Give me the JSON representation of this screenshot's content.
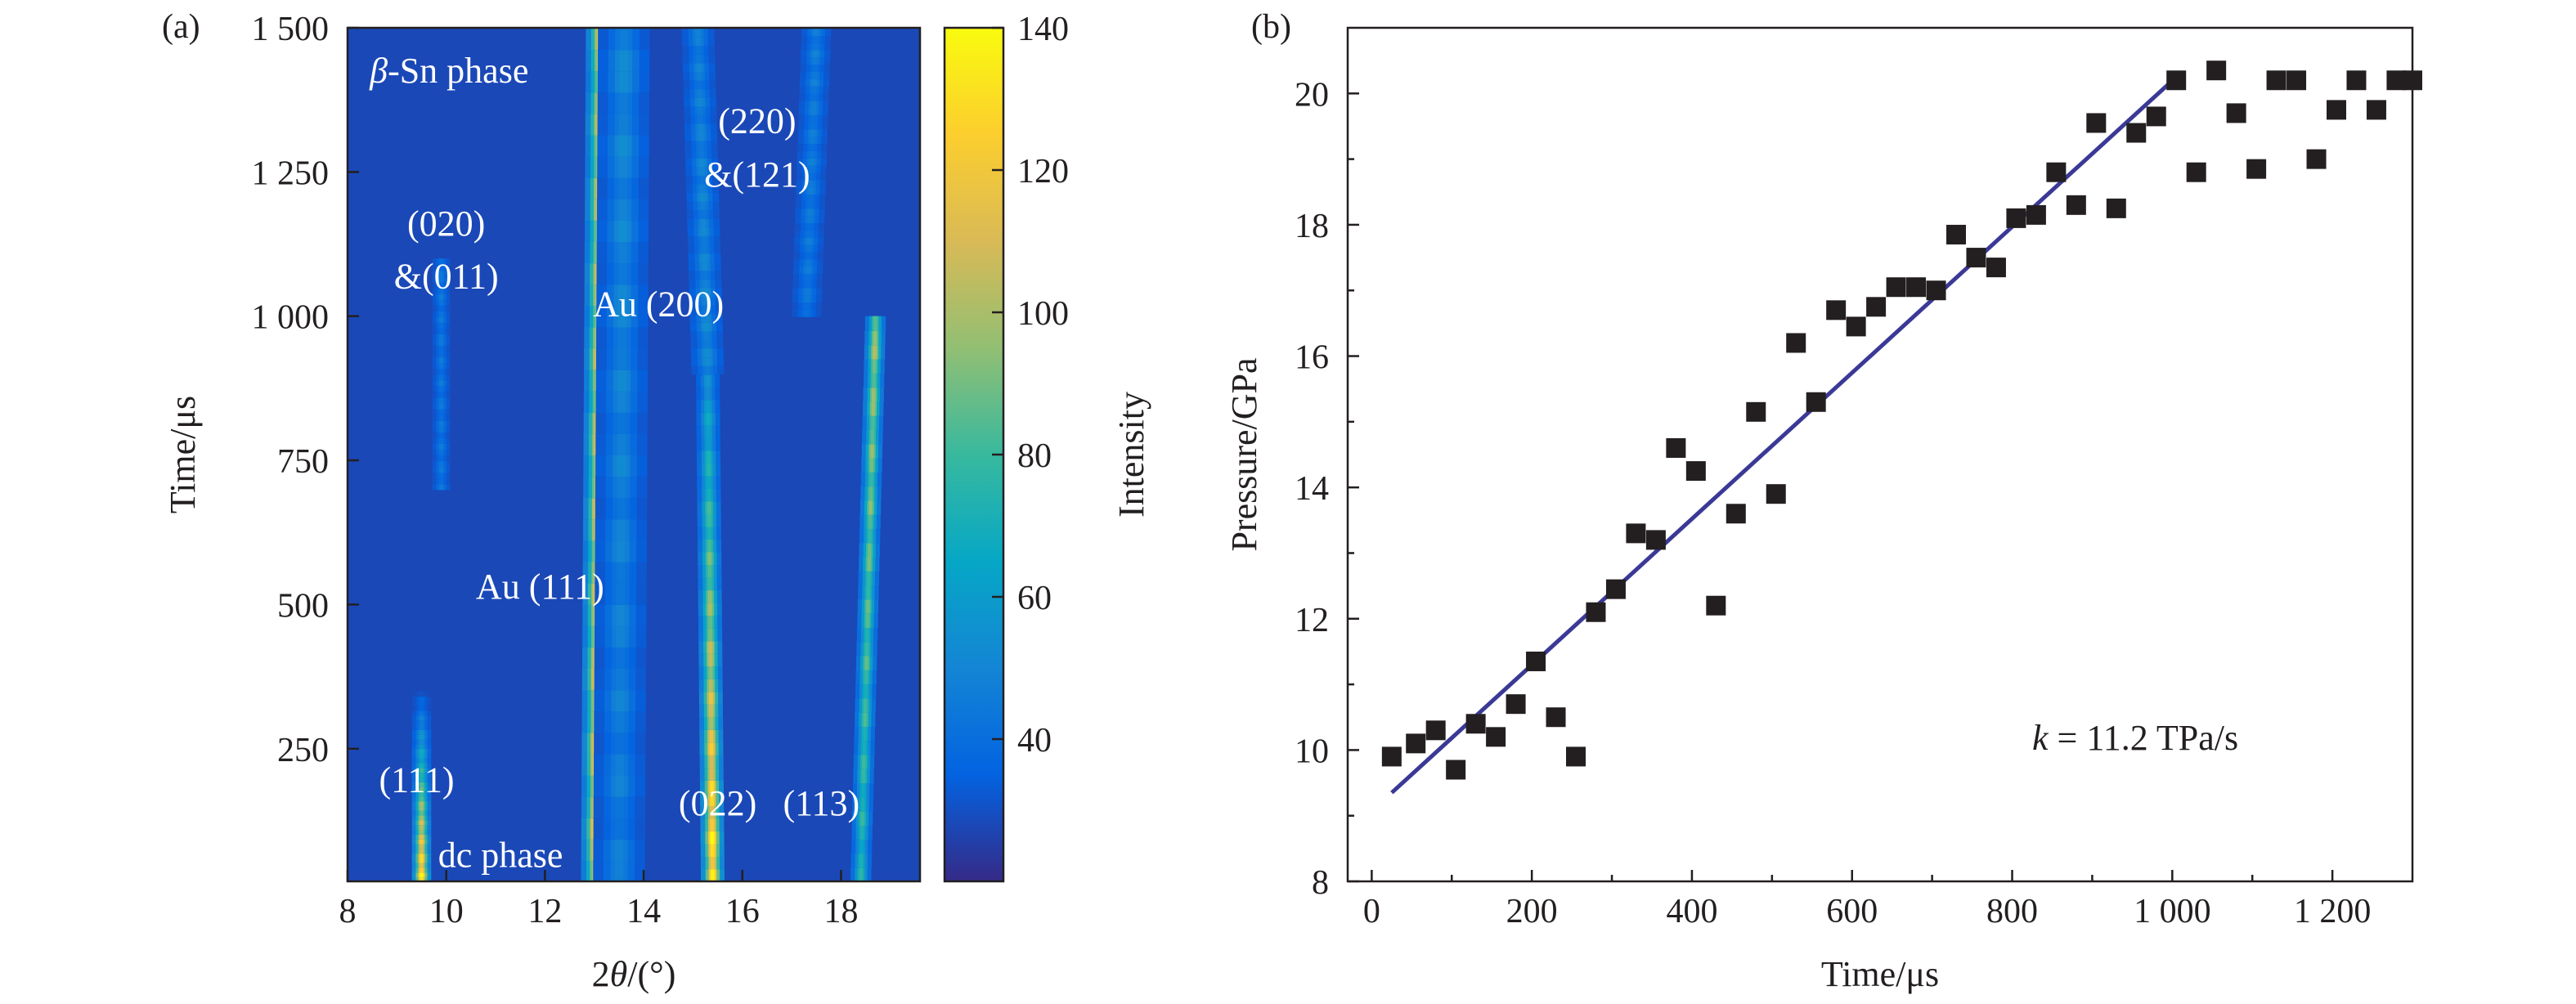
{
  "chart_data": [
    {
      "type": "heatmap",
      "panel_label": "(a)",
      "xlabel_prefix": "2",
      "xlabel_symbol": "θ",
      "xlabel_suffix": "/(°)",
      "ylabel": "Time/μs",
      "xlim": [
        8,
        19.6
      ],
      "ylim": [
        20,
        1500
      ],
      "xticks": [
        8,
        10,
        12,
        14,
        16,
        18
      ],
      "xtick_labels": [
        "8",
        "10",
        "12",
        "14",
        "16",
        "18"
      ],
      "yticks": [
        250,
        500,
        750,
        1000,
        1250,
        1500
      ],
      "ytick_labels": [
        "250",
        "500",
        "750",
        "1 000",
        "1 250",
        "1 500"
      ],
      "colorbar": {
        "label": "Intensity",
        "range": [
          20,
          140
        ],
        "ticks": [
          40,
          60,
          80,
          100,
          120,
          140
        ],
        "tick_labels": [
          "40",
          "60",
          "80",
          "100",
          "120",
          "140"
        ]
      },
      "background_intensity": 28,
      "peaks": [
        {
          "center_start": 9.5,
          "center_end": 9.5,
          "width": 0.13,
          "t_min": 20,
          "t_max": 350,
          "i_start": 135,
          "i_end": 30
        },
        {
          "center_start": 9.9,
          "center_end": 9.9,
          "width": 0.12,
          "t_min": 700,
          "t_max": 1100,
          "i_start": 42,
          "i_end": 42
        },
        {
          "center_start": 13.0,
          "center_end": 13.1,
          "width": 0.18,
          "t_min": 20,
          "t_max": 1500,
          "i_start": 110,
          "i_end": 100
        },
        {
          "center_start": 13.5,
          "center_end": 13.6,
          "width": 0.35,
          "t_min": 20,
          "t_max": 1500,
          "i_start": 45,
          "i_end": 50
        },
        {
          "center_start": 15.4,
          "center_end": 15.3,
          "width": 0.16,
          "t_min": 20,
          "t_max": 900,
          "i_start": 135,
          "i_end": 55
        },
        {
          "center_start": 15.3,
          "center_end": 15.1,
          "width": 0.22,
          "t_min": 900,
          "t_max": 1500,
          "i_start": 50,
          "i_end": 45
        },
        {
          "center_start": 18.4,
          "center_end": 18.7,
          "width": 0.14,
          "t_min": 20,
          "t_max": 1000,
          "i_start": 70,
          "i_end": 95
        },
        {
          "center_start": 17.3,
          "center_end": 17.5,
          "width": 0.2,
          "t_min": 1000,
          "t_max": 1500,
          "i_start": 42,
          "i_end": 45
        }
      ],
      "annotations": [
        {
          "text": "β-Sn phase",
          "x": 8.45,
          "y": 1425,
          "anchor": "start"
        },
        {
          "text": "(220)",
          "x": 16.3,
          "y": 1338,
          "anchor": "middle"
        },
        {
          "text": "&(121)",
          "x": 16.3,
          "y": 1245,
          "anchor": "middle"
        },
        {
          "text": "(020)",
          "x": 10.0,
          "y": 1160,
          "anchor": "middle"
        },
        {
          "text": "&(011)",
          "x": 10.0,
          "y": 1068,
          "anchor": "middle"
        },
        {
          "text": "Au (200)",
          "x": 14.3,
          "y": 1020,
          "anchor": "middle"
        },
        {
          "text": "Au (111)",
          "x": 11.9,
          "y": 530,
          "anchor": "middle"
        },
        {
          "text": "(111)",
          "x": 9.4,
          "y": 195,
          "anchor": "middle"
        },
        {
          "text": "(022)",
          "x": 15.5,
          "y": 155,
          "anchor": "middle"
        },
        {
          "text": "(113)",
          "x": 17.6,
          "y": 155,
          "anchor": "middle"
        },
        {
          "text": "dc phase",
          "x": 11.1,
          "y": 65,
          "anchor": "middle"
        }
      ]
    },
    {
      "type": "scatter",
      "panel_label": "(b)",
      "xlabel": "Time/μs",
      "ylabel": "Pressure/GPa",
      "xlim": [
        -30,
        1300
      ],
      "ylim": [
        8,
        21
      ],
      "xticks": [
        0,
        200,
        400,
        600,
        800,
        1000,
        1200
      ],
      "xtick_labels": [
        "0",
        "200",
        "400",
        "600",
        "800",
        "1 000",
        "1 200"
      ],
      "yticks": [
        8,
        10,
        12,
        14,
        16,
        18,
        20
      ],
      "ytick_labels": [
        "8",
        "10",
        "12",
        "14",
        "16",
        "18",
        "20"
      ],
      "annotation_symbol": "k",
      "annotation_text": " = 11.2 TPa/s",
      "points": [
        [
          25,
          9.9
        ],
        [
          55,
          10.1
        ],
        [
          80,
          10.3
        ],
        [
          105,
          9.7
        ],
        [
          130,
          10.4
        ],
        [
          155,
          10.2
        ],
        [
          180,
          10.7
        ],
        [
          205,
          11.35
        ],
        [
          230,
          10.5
        ],
        [
          255,
          9.9
        ],
        [
          280,
          12.1
        ],
        [
          305,
          12.45
        ],
        [
          330,
          13.3
        ],
        [
          355,
          13.2
        ],
        [
          380,
          14.6
        ],
        [
          405,
          14.25
        ],
        [
          430,
          12.2
        ],
        [
          455,
          13.6
        ],
        [
          480,
          15.15
        ],
        [
          505,
          13.9
        ],
        [
          530,
          16.2
        ],
        [
          555,
          15.3
        ],
        [
          580,
          16.7
        ],
        [
          605,
          16.45
        ],
        [
          630,
          16.75
        ],
        [
          655,
          17.05
        ],
        [
          680,
          17.05
        ],
        [
          705,
          17.0
        ],
        [
          730,
          17.85
        ],
        [
          755,
          17.5
        ],
        [
          780,
          17.35
        ],
        [
          805,
          18.1
        ],
        [
          830,
          18.15
        ],
        [
          855,
          18.8
        ],
        [
          880,
          18.3
        ],
        [
          905,
          19.55
        ],
        [
          930,
          18.25
        ],
        [
          955,
          19.4
        ],
        [
          980,
          19.65
        ],
        [
          1005,
          20.2
        ],
        [
          1030,
          18.8
        ],
        [
          1055,
          20.35
        ],
        [
          1080,
          19.7
        ],
        [
          1105,
          18.85
        ],
        [
          1130,
          20.2
        ],
        [
          1155,
          20.2
        ],
        [
          1180,
          19.0
        ],
        [
          1205,
          19.75
        ],
        [
          1230,
          20.2
        ],
        [
          1255,
          19.75
        ],
        [
          1280,
          20.2
        ],
        [
          1300,
          20.2
        ]
      ],
      "fit_line": {
        "x": [
          25,
          1005
        ],
        "y": [
          9.35,
          20.25
        ],
        "color": "#3b3996"
      },
      "marker_color": "#231f20"
    }
  ]
}
